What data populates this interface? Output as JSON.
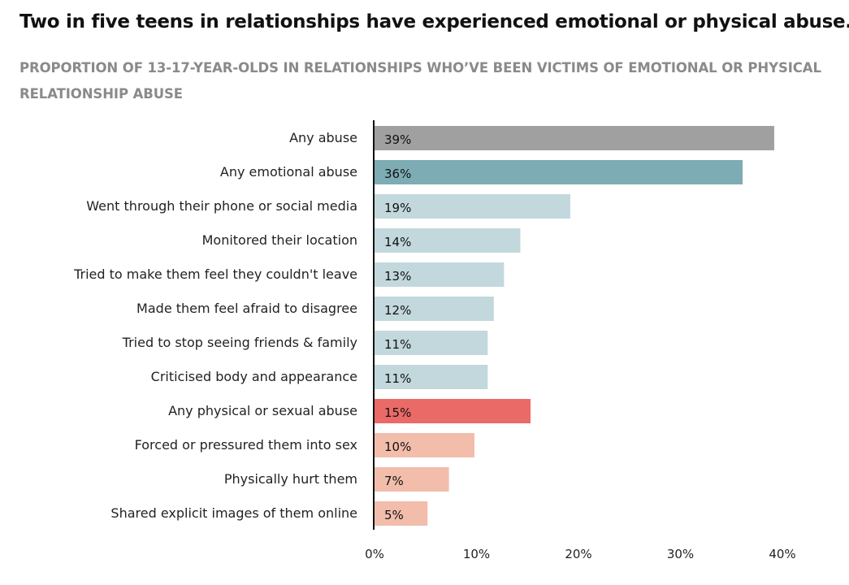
{
  "header": {
    "title": "Two in five teens in relationships have experienced emotional or physical abuse.",
    "subtitle": "PROPORTION OF 13-17-YEAR-OLDS IN RELATIONSHIPS WHO’VE BEEN VICTIMS OF EMOTIONAL OR PHYSICAL RELATIONSHIP ABUSE"
  },
  "chart_data": {
    "type": "bar",
    "orientation": "horizontal",
    "title": "Two in five teens in relationships have experienced emotional or physical abuse.",
    "subtitle": "PROPORTION OF 13-17-YEAR-OLDS IN RELATIONSHIPS WHO’VE BEEN VICTIMS OF EMOTIONAL OR PHYSICAL RELATIONSHIP ABUSE",
    "xlabel": "",
    "ylabel": "",
    "xlim": [
      0,
      40
    ],
    "grid": false,
    "categories": [
      "Any abuse",
      "Any emotional abuse",
      "Went through their phone or social media",
      "Monitored their location",
      "Tried to make them feel they couldn't leave",
      "Made them feel afraid to disagree",
      "Tried to stop seeing friends & family",
      "Criticised body and appearance",
      "Any physical or sexual abuse",
      "Forced or pressured them into sex",
      "Physically hurt them",
      "Shared explicit images of them online"
    ],
    "values": [
      39.2,
      36.1,
      19.2,
      14.3,
      12.7,
      11.7,
      11.1,
      11.1,
      15.3,
      9.8,
      7.3,
      5.2
    ],
    "value_labels": [
      "39%",
      "36%",
      "19%",
      "14%",
      "13%",
      "12%",
      "11%",
      "11%",
      "15%",
      "10%",
      "7%",
      "5%"
    ],
    "colors": [
      "#a0a0a0",
      "#7eacb4",
      "#c2d8dc",
      "#c2d8dc",
      "#c2d8dc",
      "#c2d8dc",
      "#c2d8dc",
      "#c2d8dc",
      "#ea6a67",
      "#f2bdab",
      "#f2bdab",
      "#f2bdab"
    ],
    "x_ticks": [
      0,
      10,
      20,
      30,
      40
    ],
    "x_tick_labels": [
      "0%",
      "10%",
      "20%",
      "30%",
      "40%"
    ]
  }
}
